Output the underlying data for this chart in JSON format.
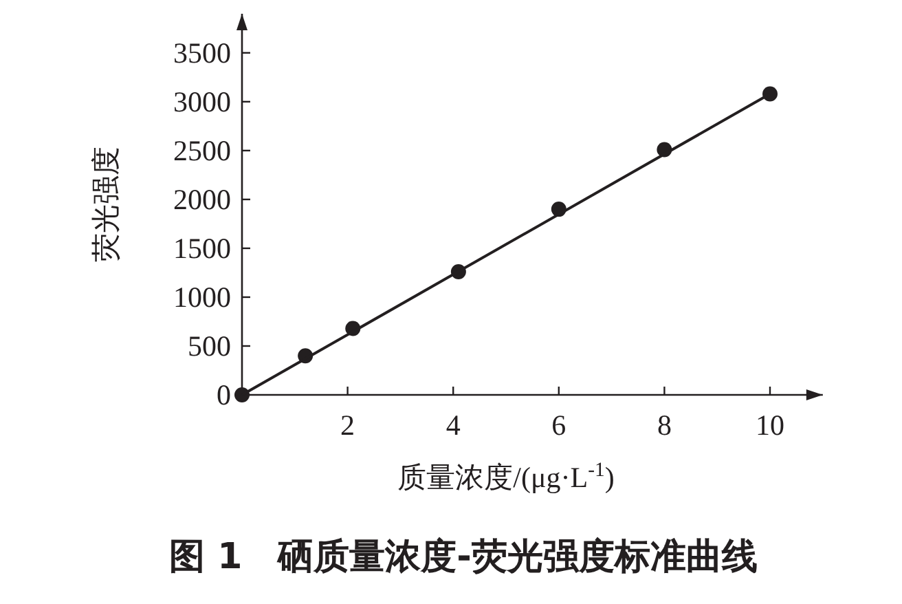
{
  "chart_data": {
    "type": "scatter",
    "title": "图 1　硒质量浓度-荧光强度标准曲线",
    "xlabel": "质量浓度/(μg·L$^{-1}$)",
    "ylabel": "荧光强度",
    "xlim": [
      0,
      11
    ],
    "ylim": [
      0,
      3900
    ],
    "xticks": [
      2,
      4,
      6,
      8,
      10
    ],
    "yticks": [
      0,
      500,
      1000,
      1500,
      2000,
      2500,
      3000,
      3500
    ],
    "grid": false,
    "series": [
      {
        "marker": "circle",
        "color": "#231f20",
        "x": [
          0,
          1.2,
          2.1,
          4.1,
          6,
          8,
          10
        ],
        "values": [
          0,
          400,
          680,
          1260,
          1900,
          2510,
          3080
        ]
      },
      {
        "type": "line",
        "marker": "none",
        "color": "#231f20",
        "x": [
          0,
          10
        ],
        "values": [
          0,
          3080
        ]
      }
    ]
  }
}
